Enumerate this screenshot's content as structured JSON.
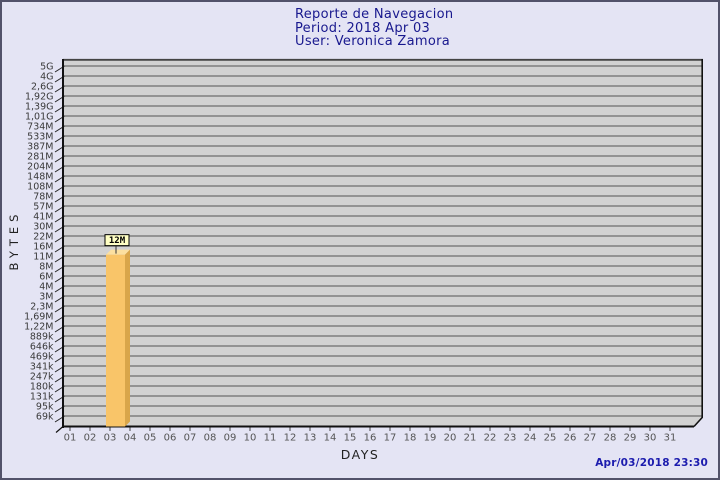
{
  "header": {
    "title": "Reporte de Navegacion",
    "period": "Period: 2018 Apr 03",
    "user": "User: Veronica Zamora"
  },
  "footer": {
    "timestamp": "Apr/03/2018 23:30"
  },
  "colors": {
    "page_background": "#E4E4F4",
    "plot_background": "#D2D2D2",
    "gridline": "#6E6E6E",
    "axis": "#111111",
    "border_dark": "#444444",
    "bar_front": "#F9C569",
    "bar_side": "#D9A64A",
    "bar_top": "#FCE0A0",
    "value_box_bg": "#FFFFC4",
    "title_text": "#18188E",
    "timestamp_text": "#1C1CAE"
  },
  "chart_data": {
    "type": "bar",
    "title": "Reporte de Navegacion",
    "subtitle": [
      "Period: 2018 Apr 03",
      "User: Veronica Zamora"
    ],
    "xlabel": "DAYS",
    "ylabel": "BYTES",
    "y_scale": "log",
    "y_axis_max_bytes": 5000000000,
    "y_axis_min_bytes": 69000,
    "grid": "horizontal",
    "y_ticks_top_to_bottom": [
      "5G",
      "4G",
      "2,6G",
      "1,92G",
      "1,39G",
      "1,01G",
      "734M",
      "533M",
      "387M",
      "281M",
      "204M",
      "148M",
      "108M",
      "78M",
      "57M",
      "41M",
      "30M",
      "22M",
      "16M",
      "11M",
      "8M",
      "6M",
      "4M",
      "3M",
      "2,3M",
      "1,69M",
      "1,22M",
      "889k",
      "646k",
      "469k",
      "341k",
      "247k",
      "180k",
      "131k",
      "95k",
      "69k"
    ],
    "x_ticks": [
      "01",
      "02",
      "03",
      "04",
      "05",
      "06",
      "07",
      "08",
      "09",
      "10",
      "11",
      "12",
      "13",
      "14",
      "15",
      "16",
      "17",
      "18",
      "19",
      "20",
      "21",
      "22",
      "23",
      "24",
      "25",
      "26",
      "27",
      "28",
      "29",
      "30",
      "31"
    ],
    "bars": [
      {
        "day": "03",
        "value_label": "12M",
        "value_bytes": 12000000
      }
    ]
  }
}
